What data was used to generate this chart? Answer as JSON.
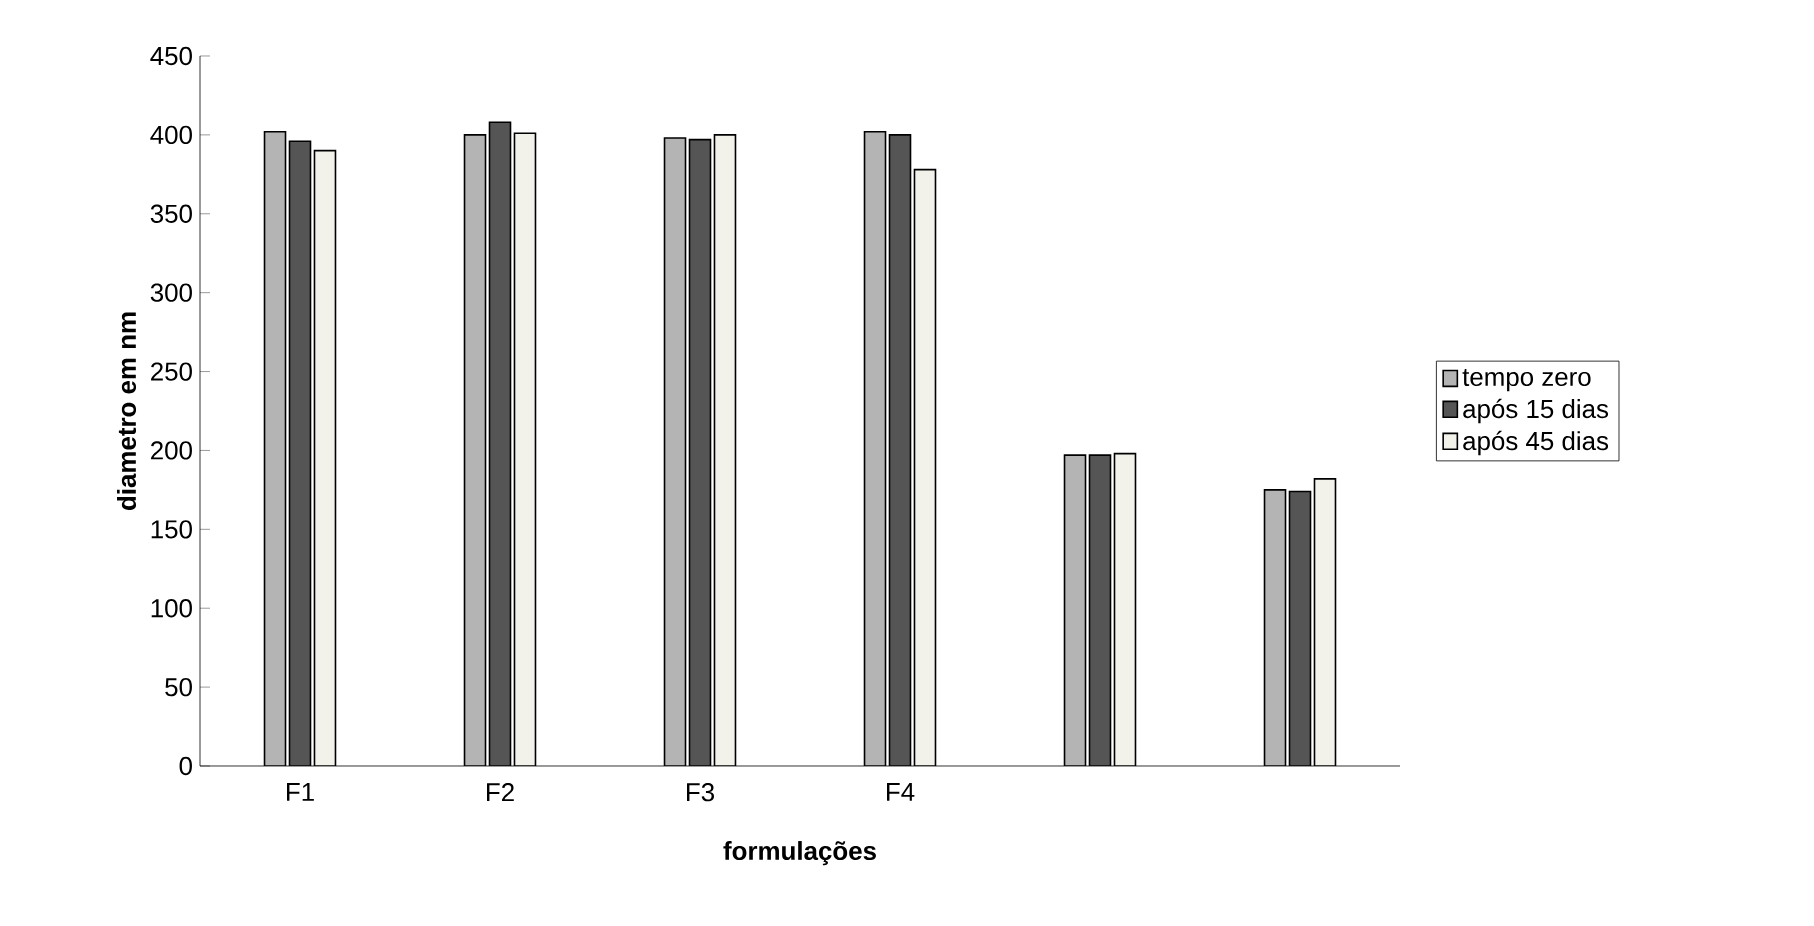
{
  "chart_data": {
    "type": "bar",
    "xlabel": "formulações",
    "ylabel": "diametro em nm",
    "categories": [
      "F1",
      "F2",
      "F3",
      "F4",
      null,
      null
    ],
    "series": [
      {
        "name": "tempo zero",
        "color": "#b4b4b4",
        "values": [
          402,
          400,
          398,
          402,
          197,
          175
        ]
      },
      {
        "name": "após 15 dias",
        "color": "#555555",
        "values": [
          396,
          408,
          397,
          400,
          197,
          174
        ]
      },
      {
        "name": "após 45 dias",
        "color": "#f2f2ea",
        "values": [
          390,
          401,
          400,
          378,
          198,
          182
        ]
      }
    ],
    "ylim": [
      0,
      450
    ],
    "yticks": [
      0,
      50,
      100,
      150,
      200,
      250,
      300,
      350,
      400,
      450
    ],
    "legend": "right"
  }
}
